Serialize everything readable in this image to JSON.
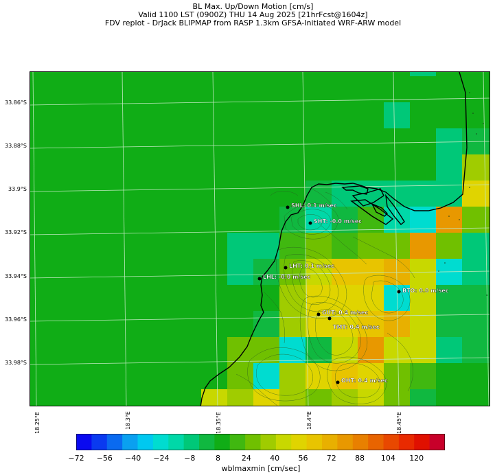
{
  "title": {
    "line1": "BL Max. Up/Down Motion [cm/s]",
    "line2": "Valid 1100 LST (0900Z) THU 14 Aug 2025 [21hrFcst@1604z]",
    "line3": "FDV replot - DrJack BLIPMAP from RASP 1.3km GFSA-Initiated WRF-ARW model"
  },
  "lat_labels": [
    "33.86°S",
    "33.88°S",
    "33.9°S",
    "33.92°S",
    "33.94°S",
    "33.96°S",
    "33.98°S"
  ],
  "lon_labels": [
    "18.25°E",
    "18.3°E",
    "18.35°E",
    "18.4°E",
    "18.45°E"
  ],
  "stations": [
    {
      "label": "SHL: 0.1 m/sec"
    },
    {
      "label": "SHT: -0.0 m/sec"
    },
    {
      "label": "LHT: 0.1 m/sec"
    },
    {
      "label": "LHL: -0.0 m/sec"
    },
    {
      "label": "BTO: 0.0 m/sec"
    },
    {
      "label": "GUT: 0.4 m/sec"
    },
    {
      "label": "TMT: 0.4 m/sec"
    },
    {
      "label": "OHT: 0.4 m/sec"
    }
  ],
  "colorbar": {
    "title": "wblmaxmin [cm/sec]",
    "tick_labels": [
      "−72",
      "−56",
      "−40",
      "−24",
      "−8",
      "8",
      "24",
      "40",
      "56",
      "72",
      "88",
      "104",
      "120"
    ],
    "colors": [
      "#0a0af0",
      "#0a3af0",
      "#0a6af0",
      "#0aa0f0",
      "#00c8f0",
      "#00dcd0",
      "#00d8a8",
      "#00c878",
      "#10b840",
      "#10ad16",
      "#40b810",
      "#70c000",
      "#a0cc00",
      "#c8d800",
      "#e0d400",
      "#e8c400",
      "#e8b000",
      "#e89800",
      "#e88000",
      "#e86400",
      "#e84800",
      "#e82a00",
      "#e01000",
      "#c8002a"
    ],
    "domain": [
      -72,
      136
    ]
  },
  "colors": {
    "background": "#10ad16",
    "grid": "#bfe8bf",
    "coast": "#000000",
    "label_text": "#ffffff"
  }
}
